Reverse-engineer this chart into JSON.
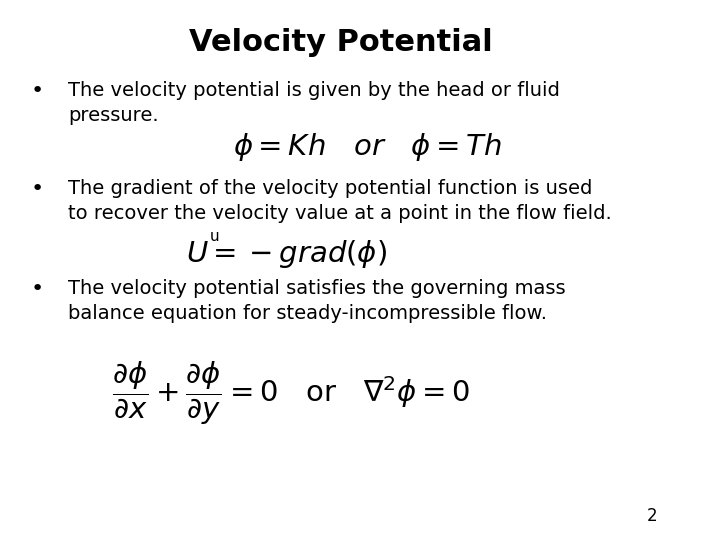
{
  "title": "Velocity Potential",
  "title_fontsize": 22,
  "title_fontweight": "bold",
  "background_color": "#ffffff",
  "text_color": "#000000",
  "bullet1_text1": "The velocity potential is given by the head or fluid",
  "bullet1_text2": "pressure.",
  "bullet2_text1": "The gradient of the velocity potential function is used",
  "bullet2_text2": "to recover the velocity value at a point in the flow field.",
  "formula2_label": "u",
  "bullet3_text1": "The velocity potential satisfies the governing mass",
  "bullet3_text2": "balance equation for steady-incompressible flow.",
  "page_number": "2",
  "body_fontsize": 14,
  "formula_fontsize": 17
}
